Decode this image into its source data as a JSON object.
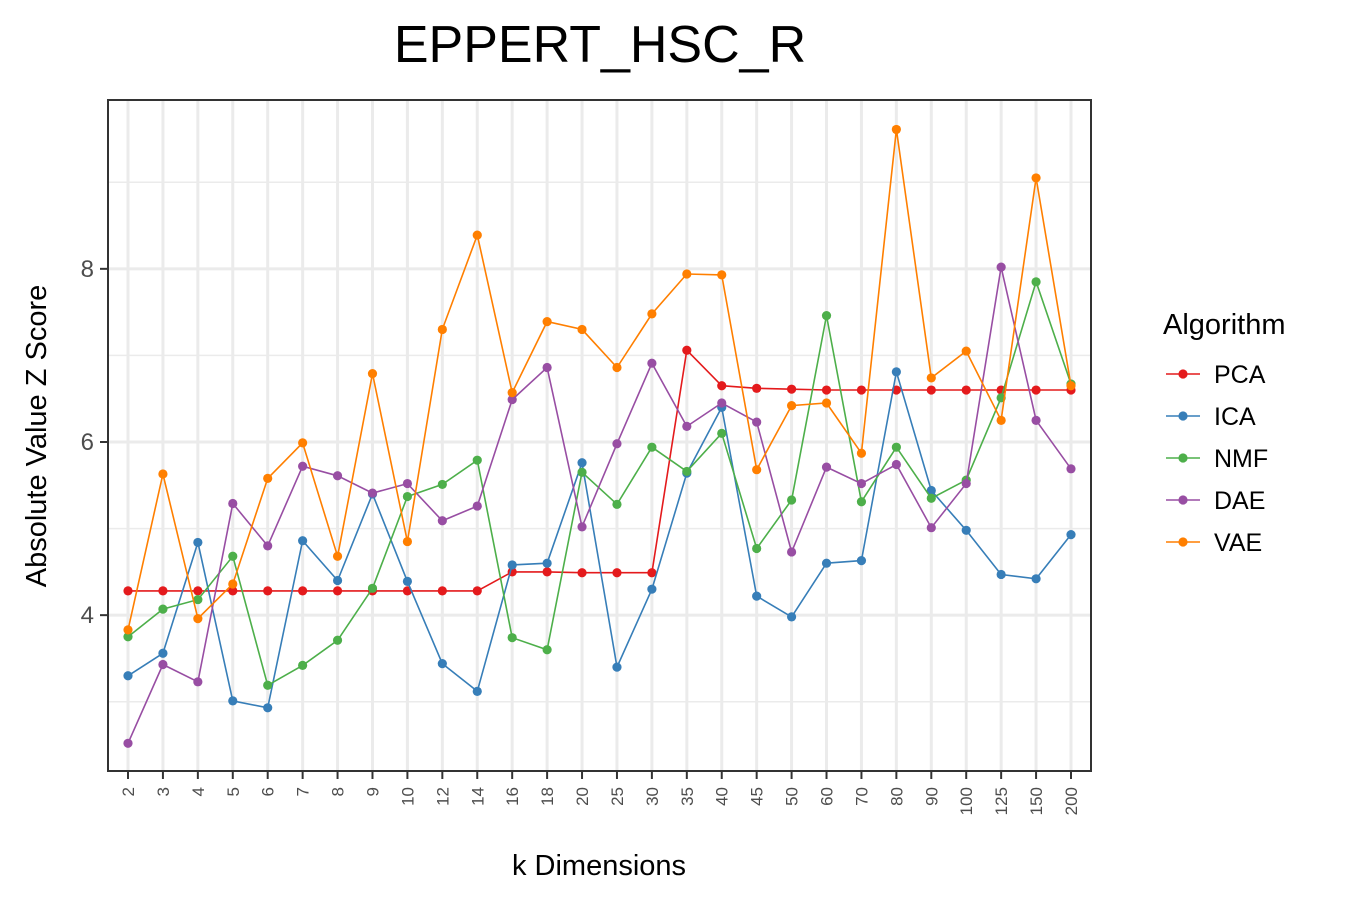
{
  "chart_data": {
    "type": "line",
    "title": "EPPERT_HSC_R",
    "xlabel": "k Dimensions",
    "ylabel": "Absolute Value Z Score",
    "x_categories": [
      "2",
      "3",
      "4",
      "5",
      "6",
      "7",
      "8",
      "9",
      "10",
      "12",
      "14",
      "16",
      "18",
      "20",
      "25",
      "30",
      "35",
      "40",
      "45",
      "50",
      "60",
      "70",
      "80",
      "90",
      "100",
      "125",
      "150",
      "200"
    ],
    "ylim": [
      2.2,
      9.95
    ],
    "y_ticks": [
      4,
      6,
      8
    ],
    "y_tick_labels": [
      "4",
      "6",
      "8"
    ],
    "grid": true,
    "legend": {
      "title": "Algorithm",
      "position": "right"
    },
    "series": [
      {
        "name": "PCA",
        "color": "#e41a1c",
        "values": [
          4.28,
          4.28,
          4.28,
          4.28,
          4.28,
          4.28,
          4.28,
          4.28,
          4.28,
          4.28,
          4.28,
          4.5,
          4.5,
          4.49,
          4.49,
          4.49,
          7.06,
          6.65,
          6.62,
          6.61,
          6.6,
          6.6,
          6.6,
          6.6,
          6.6,
          6.6,
          6.6,
          6.6
        ]
      },
      {
        "name": "ICA",
        "color": "#377eb8",
        "values": [
          3.3,
          3.56,
          4.84,
          3.01,
          2.93,
          4.86,
          4.4,
          5.4,
          4.39,
          3.44,
          3.12,
          4.58,
          4.6,
          5.76,
          3.4,
          4.3,
          5.64,
          6.4,
          4.22,
          3.98,
          4.6,
          4.63,
          6.81,
          5.44,
          4.98,
          4.47,
          4.42,
          4.93
        ]
      },
      {
        "name": "NMF",
        "color": "#4daf4a",
        "values": [
          3.75,
          4.07,
          4.18,
          4.68,
          3.19,
          3.42,
          3.71,
          4.31,
          5.37,
          5.51,
          5.79,
          3.74,
          3.6,
          5.65,
          5.28,
          5.94,
          5.66,
          6.1,
          4.77,
          5.33,
          7.46,
          5.31,
          5.94,
          5.35,
          5.56,
          6.51,
          7.85,
          6.67
        ]
      },
      {
        "name": "DAE",
        "color": "#984ea3",
        "values": [
          2.52,
          3.43,
          3.23,
          5.29,
          4.8,
          5.72,
          5.61,
          5.41,
          5.52,
          5.09,
          5.26,
          6.49,
          6.86,
          5.02,
          5.98,
          6.91,
          6.18,
          6.45,
          6.23,
          4.73,
          5.71,
          5.52,
          5.74,
          5.01,
          5.52,
          8.02,
          6.25,
          5.69
        ]
      },
      {
        "name": "VAE",
        "color": "#ff7f00",
        "values": [
          3.83,
          5.63,
          3.96,
          4.36,
          5.58,
          5.99,
          4.68,
          6.79,
          4.85,
          7.3,
          8.39,
          6.57,
          7.39,
          7.3,
          6.86,
          7.48,
          7.94,
          7.93,
          5.68,
          6.42,
          6.45,
          5.87,
          9.61,
          6.74,
          7.05,
          6.25,
          9.05,
          6.65
        ]
      }
    ]
  }
}
